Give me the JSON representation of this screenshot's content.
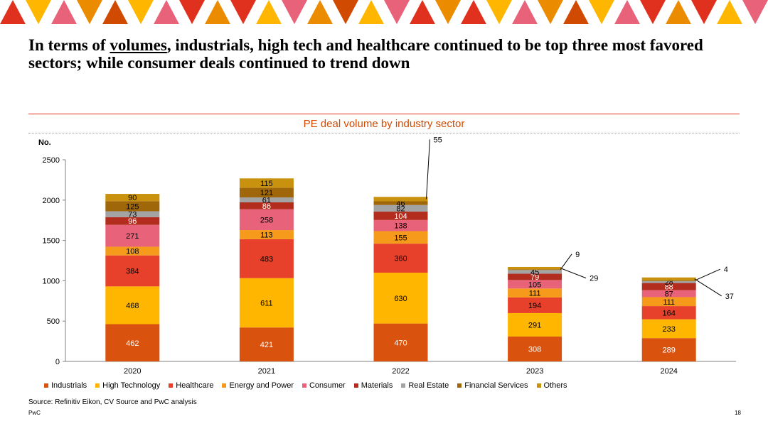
{
  "title": {
    "pre": "In terms of ",
    "underlined": "volumes",
    "post": ", industrials, high tech and healthcare continued to be top three most favored sectors; while consumer deals continued to trend down"
  },
  "colors": {
    "accent": "#e0301e",
    "orange": "#d04a02",
    "tangerine": "#eb8c00",
    "yellow": "#ffb600",
    "rose": "#e8637a",
    "grey": "#a3a3a3"
  },
  "chart_data": {
    "type": "bar",
    "stacked": true,
    "title": "PE deal volume by industry sector",
    "ylabel": "No.",
    "xlabel": "",
    "ylim": [
      0,
      2500
    ],
    "yticks": [
      "0",
      "500",
      "1000",
      "1500",
      "2000",
      "2500"
    ],
    "categories": [
      "2020",
      "2021",
      "2022",
      "2023",
      "2024"
    ],
    "series": [
      {
        "name": "Industrials",
        "color": "#d9530f",
        "label_color": "#ffffff",
        "values": [
          462,
          421,
          470,
          308,
          289
        ]
      },
      {
        "name": "High Technology",
        "color": "#ffb600",
        "label_color": "#000000",
        "values": [
          468,
          611,
          630,
          291,
          233
        ]
      },
      {
        "name": "Healthcare",
        "color": "#e8412b",
        "label_color": "#000000",
        "values": [
          384,
          483,
          360,
          194,
          164
        ]
      },
      {
        "name": "Energy and Power",
        "color": "#f59a1b",
        "label_color": "#000000",
        "values": [
          108,
          113,
          155,
          111,
          111
        ]
      },
      {
        "name": "Consumer",
        "color": "#e8637a",
        "label_color": "#000000",
        "values": [
          271,
          258,
          138,
          105,
          87
        ]
      },
      {
        "name": "Materials",
        "color": "#b32d1e",
        "label_color": "#ffffff",
        "values": [
          96,
          86,
          104,
          79,
          88
        ]
      },
      {
        "name": "Real Estate",
        "color": "#a3a3a3",
        "label_color": "#000000",
        "values": [
          73,
          61,
          82,
          45,
          28
        ]
      },
      {
        "name": "Financial Services",
        "color": "#a0660a",
        "label_color": "#000000",
        "values": [
          125,
          121,
          46,
          9,
          4
        ]
      },
      {
        "name": "Others",
        "color": "#c9920e",
        "label_color": "#000000",
        "values": [
          90,
          115,
          55,
          29,
          37
        ]
      }
    ],
    "labels": [
      [
        "462",
        "468",
        "384",
        "108",
        "271",
        "96",
        "73",
        "125",
        "90"
      ],
      [
        "421",
        "611",
        "483",
        "113",
        "258",
        "86",
        "61",
        "121",
        "115"
      ],
      [
        "470",
        "630",
        "360",
        "155",
        "138",
        "104",
        "82",
        "46",
        "55"
      ],
      [
        "308",
        "291",
        "194",
        "111",
        "105",
        "79",
        "45",
        "9",
        "29"
      ],
      [
        "289",
        "233",
        "164",
        "111",
        "87",
        "88",
        "28",
        "4",
        "37"
      ]
    ],
    "legend_position": "bottom"
  },
  "legend": {
    "items": [
      {
        "label": "Industrials",
        "color": "#d9530f"
      },
      {
        "label": "High Technology",
        "color": "#ffb600"
      },
      {
        "label": "Healthcare",
        "color": "#e8412b"
      },
      {
        "label": "Energy and Power",
        "color": "#f59a1b"
      },
      {
        "label": "Consumer",
        "color": "#e8637a"
      },
      {
        "label": "Materials",
        "color": "#b32d1e"
      },
      {
        "label": "Real Estate",
        "color": "#a3a3a3"
      },
      {
        "label": "Financial Services",
        "color": "#a0660a"
      },
      {
        "label": "Others",
        "color": "#c9920e"
      }
    ]
  },
  "footer": {
    "source": "Source: Refinitiv Eikon, CV Source and PwC analysis",
    "brand": "PwC",
    "page": "18"
  }
}
